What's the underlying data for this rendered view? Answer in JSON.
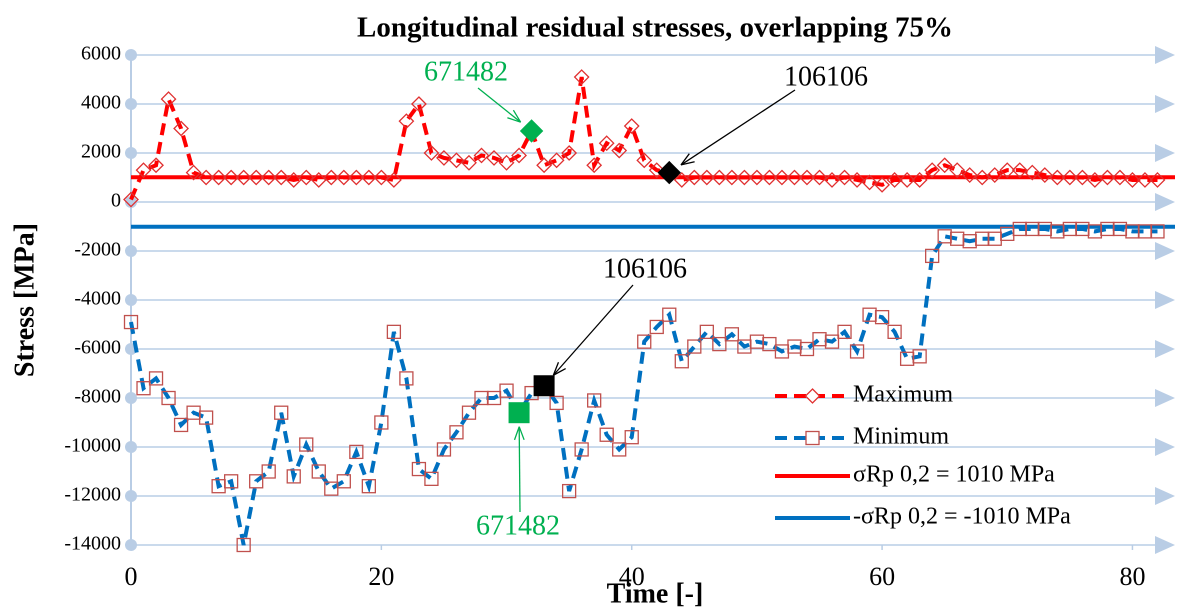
{
  "chart_data": {
    "type": "line",
    "title": "Longitudinal residual stresses, overlapping 75%",
    "x_label": "Time [-]",
    "y_label": "Stress [MPa]",
    "x": [
      0,
      1,
      2,
      3,
      4,
      5,
      6,
      7,
      8,
      9,
      10,
      11,
      12,
      13,
      14,
      15,
      16,
      17,
      18,
      19,
      20,
      21,
      22,
      23,
      24,
      25,
      26,
      27,
      28,
      29,
      30,
      31,
      32,
      33,
      34,
      35,
      36,
      37,
      38,
      39,
      40,
      41,
      42,
      43,
      44,
      45,
      46,
      47,
      48,
      49,
      50,
      51,
      52,
      53,
      54,
      55,
      56,
      57,
      58,
      59,
      60,
      61,
      62,
      63,
      64,
      65,
      66,
      67,
      68,
      69,
      70,
      71,
      72,
      73,
      74,
      75,
      76,
      77,
      78,
      79,
      80,
      81,
      82
    ],
    "series": [
      {
        "name": "Maximum",
        "color": "#ff0000",
        "marker_color": "#e03030",
        "marker": "diamond",
        "dashed": true,
        "values": [
          100,
          1300,
          1500,
          4200,
          3000,
          1200,
          1000,
          1000,
          1000,
          1000,
          1000,
          1000,
          1000,
          900,
          1000,
          900,
          1000,
          1000,
          1000,
          1000,
          1000,
          900,
          3300,
          4000,
          2000,
          1800,
          1700,
          1600,
          1900,
          1800,
          1600,
          1900,
          2900,
          1500,
          1700,
          2000,
          5100,
          1500,
          2400,
          2100,
          3100,
          1700,
          1300,
          1200,
          900,
          1000,
          1000,
          1000,
          1000,
          1000,
          1000,
          1000,
          1000,
          1000,
          1000,
          1000,
          900,
          1000,
          900,
          800,
          700,
          900,
          900,
          900,
          1300,
          1500,
          1300,
          1100,
          1000,
          1100,
          1300,
          1300,
          1200,
          1100,
          1000,
          1000,
          1000,
          900,
          1000,
          1000,
          900,
          900,
          900
        ]
      },
      {
        "name": "Minimum",
        "color": "#0070c0",
        "marker_color": "#c0504d",
        "marker": "square",
        "dashed": true,
        "values": [
          -4900,
          -7600,
          -7200,
          -8000,
          -9100,
          -8600,
          -8800,
          -11600,
          -11400,
          -14000,
          -11400,
          -11000,
          -8600,
          -11200,
          -9900,
          -11000,
          -11700,
          -11400,
          -10200,
          -11600,
          -9000,
          -5300,
          -7200,
          -10900,
          -11300,
          -10100,
          -9400,
          -8600,
          -8000,
          -8000,
          -7700,
          -8600,
          -7800,
          -7500,
          -8200,
          -11800,
          -10100,
          -8100,
          -9500,
          -10100,
          -9600,
          -5700,
          -5100,
          -4600,
          -6500,
          -5900,
          -5300,
          -5800,
          -5400,
          -5900,
          -5700,
          -5800,
          -6100,
          -5900,
          -6000,
          -5600,
          -5700,
          -5300,
          -6100,
          -4600,
          -4700,
          -5300,
          -6400,
          -6300,
          -2200,
          -1400,
          -1500,
          -1600,
          -1500,
          -1500,
          -1300,
          -1100,
          -1100,
          -1100,
          -1200,
          -1100,
          -1100,
          -1200,
          -1100,
          -1100,
          -1200,
          -1200,
          -1200
        ]
      }
    ],
    "reference_lines": [
      {
        "name": "σRp 0,2 = 1010 MPa",
        "value": 1010,
        "color": "#ff0000"
      },
      {
        "name": "-σRp 0,2 = -1010 MPa",
        "value": -1010,
        "color": "#0070c0"
      }
    ],
    "highlights": [
      {
        "x": 32,
        "y": 2900,
        "color": "#00b050",
        "marker": "diamond"
      },
      {
        "x": 43,
        "y": 1200,
        "color": "#000000",
        "marker": "diamond"
      },
      {
        "x": 33,
        "y": -7500,
        "color": "#000000",
        "marker": "square"
      },
      {
        "x": 31,
        "y": -8600,
        "color": "#00b050",
        "marker": "square"
      }
    ],
    "annotations": [
      {
        "text": "671482",
        "color": "#00b050"
      },
      {
        "text": "106106",
        "color": "#000000"
      },
      {
        "text": "106106",
        "color": "#000000"
      },
      {
        "text": "671482",
        "color": "#00b050"
      }
    ],
    "xlim": [
      0,
      83
    ],
    "ylim": [
      -14000,
      6000
    ],
    "xticks": [
      0,
      20,
      40,
      60,
      80
    ],
    "yticks": [
      -14000,
      -12000,
      -10000,
      -8000,
      -6000,
      -4000,
      -2000,
      0,
      2000,
      4000,
      6000
    ],
    "grid": true,
    "legend": "lower right"
  }
}
